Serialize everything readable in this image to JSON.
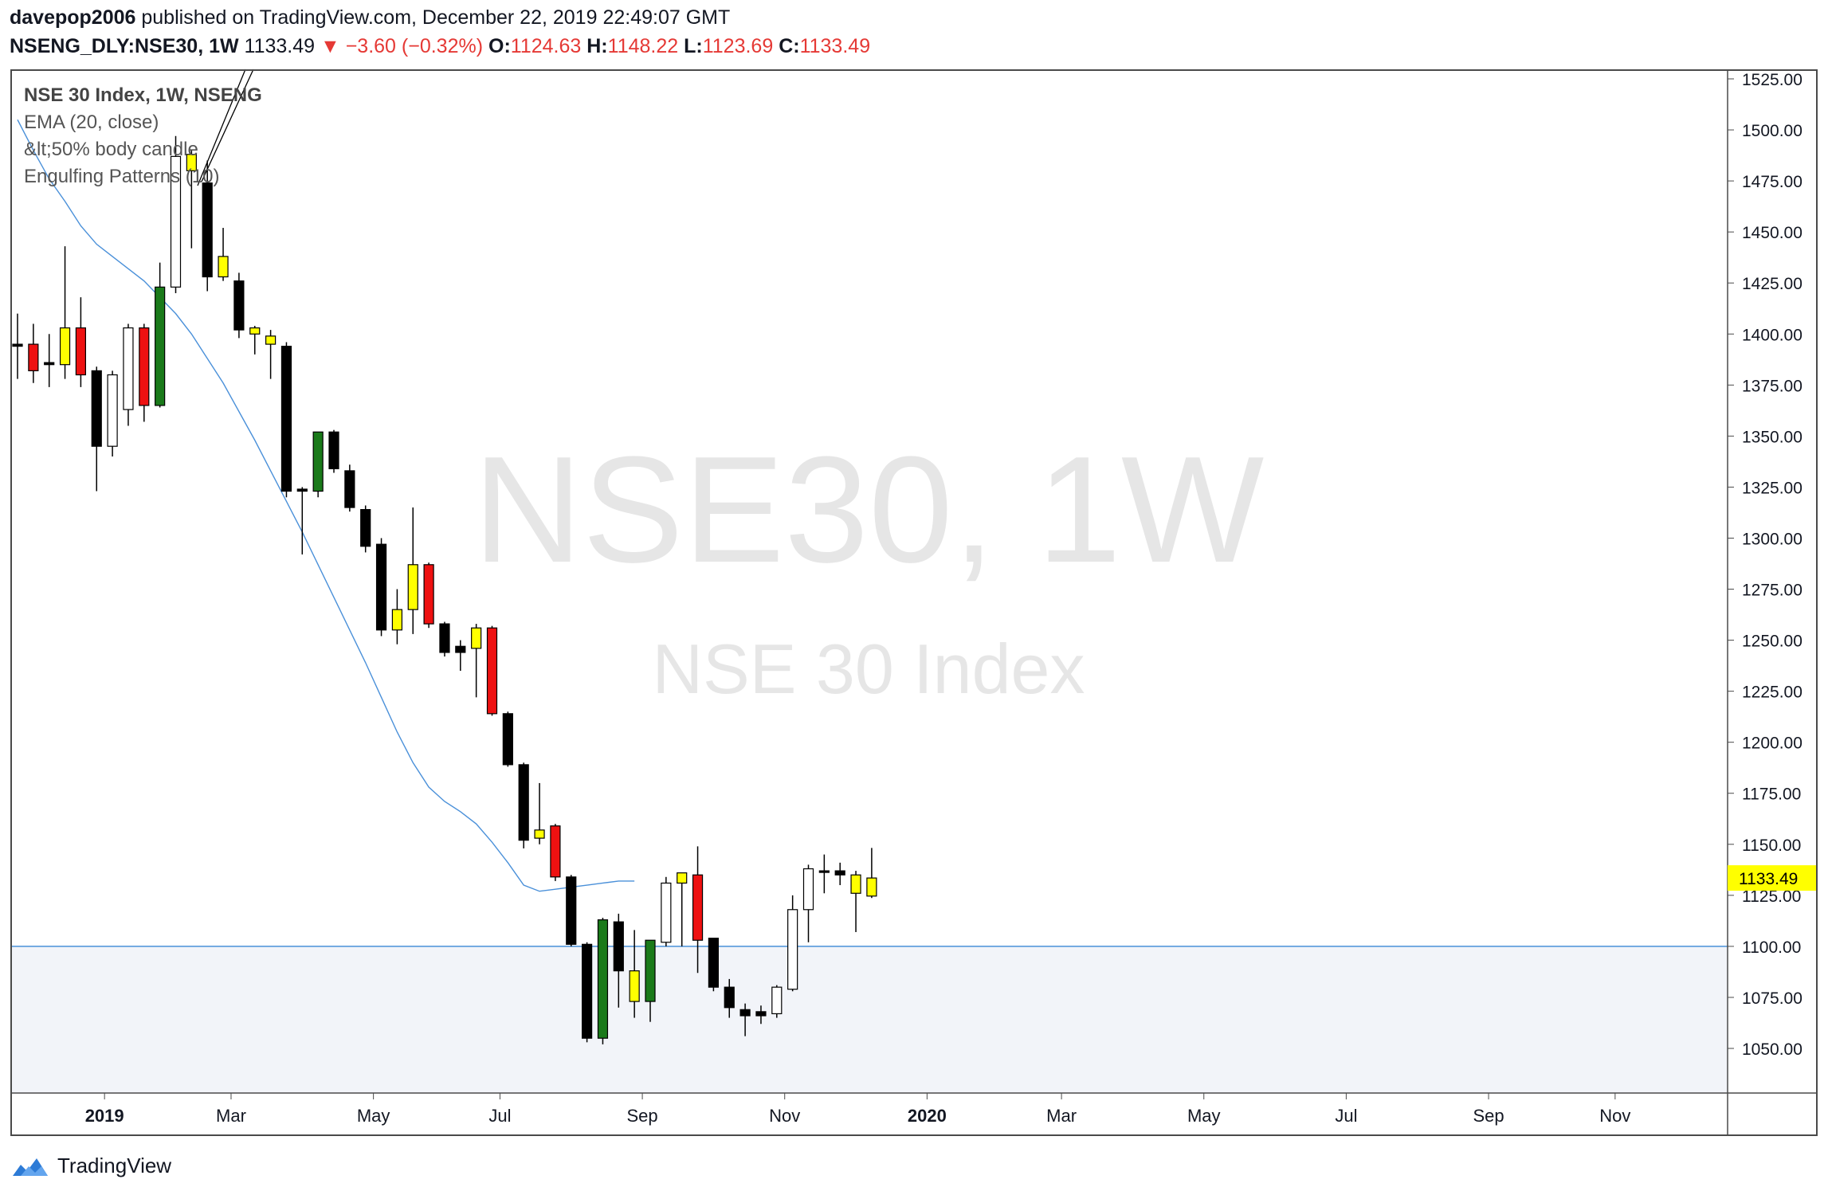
{
  "header": {
    "author": "davepop2006",
    "published_text": "published on TradingView.com, December 22, 2019 22:49:07 GMT",
    "symbol": "NSENG_DLY:NSE30, 1W",
    "last": "1133.49",
    "change": "▼ −3.60 (−0.32%)",
    "o_label": "O:",
    "o_value": "1124.63",
    "h_label": "H:",
    "h_value": "1148.22",
    "l_label": "L:",
    "l_value": "1123.69",
    "c_label": "C:",
    "c_value": "1133.49"
  },
  "legend": {
    "title": "NSE 30 Index, 1W, NSENG",
    "ema": "EMA (20, close)",
    "body_candle": "&lt;50% body candle",
    "engulfing": "Engulfing Patterns (10)"
  },
  "watermark": {
    "symbol": "NSE30, 1W",
    "name": "NSE 30 Index"
  },
  "footer": {
    "brand": "TradingView"
  },
  "colors": {
    "bull_green": "#1a7a1a",
    "bear_red": "#ee1111",
    "doji_yellow": "#ffff00",
    "bear_black": "#000000",
    "bull_white": "#ffffff",
    "ema": "#4a90d9",
    "support_zone": "#f2f4f9",
    "price_tag": "#ffff00"
  },
  "chart_data": {
    "type": "candlestick",
    "y_ticks": [
      "1525.00",
      "1500.00",
      "1475.00",
      "1450.00",
      "1425.00",
      "1400.00",
      "1375.00",
      "1350.00",
      "1325.00",
      "1300.00",
      "1275.00",
      "1250.00",
      "1225.00",
      "1200.00",
      "1175.00",
      "1150.00",
      "1125.00",
      "1100.00",
      "1075.00",
      "1050.00"
    ],
    "ylim": [
      1030,
      1530
    ],
    "x_ticks": [
      {
        "label": "2019",
        "index": 5.5,
        "bold": true
      },
      {
        "label": "Mar",
        "index": 13.5
      },
      {
        "label": "May",
        "index": 22.5
      },
      {
        "label": "Jul",
        "index": 30.5
      },
      {
        "label": "Sep",
        "index": 39.5
      },
      {
        "label": "Nov",
        "index": 48.5
      },
      {
        "label": "2020",
        "index": 57.5,
        "bold": true
      },
      {
        "label": "Mar",
        "index": 66
      },
      {
        "label": "May",
        "index": 75
      },
      {
        "label": "Jul",
        "index": 84
      },
      {
        "label": "Sep",
        "index": 93
      },
      {
        "label": "Nov",
        "index": 101
      }
    ],
    "x_total_bars": 109,
    "last_price_label": "1133.49",
    "last_price": 1133.49,
    "support_line": 1100,
    "candles": [
      {
        "o": 1394,
        "h": 1410,
        "l": 1378,
        "c": 1395,
        "color": "black"
      },
      {
        "o": 1395,
        "h": 1405,
        "l": 1376,
        "c": 1382,
        "color": "red"
      },
      {
        "o": 1386,
        "h": 1400,
        "l": 1374,
        "c": 1385,
        "color": "black"
      },
      {
        "o": 1385,
        "h": 1443,
        "l": 1378,
        "c": 1403,
        "color": "yellow"
      },
      {
        "o": 1403,
        "h": 1418,
        "l": 1374,
        "c": 1380,
        "color": "red"
      },
      {
        "o": 1382,
        "h": 1384,
        "l": 1323,
        "c": 1345,
        "color": "black"
      },
      {
        "o": 1345,
        "h": 1382,
        "l": 1340,
        "c": 1380,
        "color": "white"
      },
      {
        "o": 1363,
        "h": 1405,
        "l": 1355,
        "c": 1403,
        "color": "white"
      },
      {
        "o": 1403,
        "h": 1405,
        "l": 1357,
        "c": 1365,
        "color": "red"
      },
      {
        "o": 1365,
        "h": 1435,
        "l": 1364,
        "c": 1423,
        "color": "green"
      },
      {
        "o": 1423,
        "h": 1497,
        "l": 1420,
        "c": 1487,
        "color": "white"
      },
      {
        "o": 1488,
        "h": 1490,
        "l": 1442,
        "c": 1480,
        "color": "yellow"
      },
      {
        "o": 1474,
        "h": 1485,
        "l": 1421,
        "c": 1428,
        "color": "black"
      },
      {
        "o": 1428,
        "h": 1452,
        "l": 1426,
        "c": 1438,
        "color": "yellow"
      },
      {
        "o": 1426,
        "h": 1430,
        "l": 1398,
        "c": 1402,
        "color": "black"
      },
      {
        "o": 1403,
        "h": 1404,
        "l": 1390,
        "c": 1400,
        "color": "yellow"
      },
      {
        "o": 1399,
        "h": 1402,
        "l": 1378,
        "c": 1395,
        "color": "yellow"
      },
      {
        "o": 1394,
        "h": 1396,
        "l": 1320,
        "c": 1323,
        "color": "black"
      },
      {
        "o": 1323,
        "h": 1325,
        "l": 1292,
        "c": 1324,
        "color": "black"
      },
      {
        "o": 1323,
        "h": 1352,
        "l": 1320,
        "c": 1352,
        "color": "green"
      },
      {
        "o": 1352,
        "h": 1353,
        "l": 1332,
        "c": 1334,
        "color": "black"
      },
      {
        "o": 1333,
        "h": 1336,
        "l": 1313,
        "c": 1315,
        "color": "black"
      },
      {
        "o": 1314,
        "h": 1316,
        "l": 1293,
        "c": 1296,
        "color": "black"
      },
      {
        "o": 1297,
        "h": 1300,
        "l": 1252,
        "c": 1255,
        "color": "black"
      },
      {
        "o": 1255,
        "h": 1275,
        "l": 1248,
        "c": 1265,
        "color": "yellow"
      },
      {
        "o": 1265,
        "h": 1315,
        "l": 1253,
        "c": 1287,
        "color": "yellow"
      },
      {
        "o": 1287,
        "h": 1288,
        "l": 1256,
        "c": 1258,
        "color": "red"
      },
      {
        "o": 1258,
        "h": 1259,
        "l": 1242,
        "c": 1244,
        "color": "black"
      },
      {
        "o": 1247,
        "h": 1250,
        "l": 1235,
        "c": 1244,
        "color": "black"
      },
      {
        "o": 1246,
        "h": 1258,
        "l": 1222,
        "c": 1256,
        "color": "yellow"
      },
      {
        "o": 1256,
        "h": 1257,
        "l": 1213,
        "c": 1214,
        "color": "red"
      },
      {
        "o": 1214,
        "h": 1215,
        "l": 1188,
        "c": 1189,
        "color": "black"
      },
      {
        "o": 1189,
        "h": 1190,
        "l": 1148,
        "c": 1152,
        "color": "black"
      },
      {
        "o": 1153,
        "h": 1180,
        "l": 1150,
        "c": 1157,
        "color": "yellow"
      },
      {
        "o": 1159,
        "h": 1160,
        "l": 1132,
        "c": 1134,
        "color": "red"
      },
      {
        "o": 1134,
        "h": 1135,
        "l": 1100,
        "c": 1101,
        "color": "black"
      },
      {
        "o": 1101,
        "h": 1102,
        "l": 1053,
        "c": 1055,
        "color": "black"
      },
      {
        "o": 1055,
        "h": 1114,
        "l": 1052,
        "c": 1113,
        "color": "green"
      },
      {
        "o": 1112,
        "h": 1116,
        "l": 1070,
        "c": 1088,
        "color": "black"
      },
      {
        "o": 1088,
        "h": 1108,
        "l": 1065,
        "c": 1073,
        "color": "yellow"
      },
      {
        "o": 1073,
        "h": 1103,
        "l": 1063,
        "c": 1103,
        "color": "green"
      },
      {
        "o": 1102,
        "h": 1134,
        "l": 1100,
        "c": 1131,
        "color": "white"
      },
      {
        "o": 1131,
        "h": 1136,
        "l": 1100,
        "c": 1136,
        "color": "yellow"
      },
      {
        "o": 1135,
        "h": 1149,
        "l": 1087,
        "c": 1103,
        "color": "red"
      },
      {
        "o": 1104,
        "h": 1104,
        "l": 1078,
        "c": 1080,
        "color": "black"
      },
      {
        "o": 1080,
        "h": 1084,
        "l": 1065,
        "c": 1070,
        "color": "black"
      },
      {
        "o": 1069,
        "h": 1072,
        "l": 1056,
        "c": 1066,
        "color": "black"
      },
      {
        "o": 1066,
        "h": 1071,
        "l": 1062,
        "c": 1068,
        "color": "black"
      },
      {
        "o": 1067,
        "h": 1081,
        "l": 1065,
        "c": 1080,
        "color": "white"
      },
      {
        "o": 1079,
        "h": 1125,
        "l": 1078,
        "c": 1118,
        "color": "white"
      },
      {
        "o": 1118,
        "h": 1140,
        "l": 1102,
        "c": 1138,
        "color": "white"
      },
      {
        "o": 1137,
        "h": 1145,
        "l": 1126,
        "c": 1137,
        "color": "black"
      },
      {
        "o": 1137,
        "h": 1141,
        "l": 1130,
        "c": 1135,
        "color": "black"
      },
      {
        "o": 1126,
        "h": 1137,
        "l": 1107,
        "c": 1135,
        "color": "yellow"
      },
      {
        "o": 1124.63,
        "h": 1148.22,
        "l": 1123.69,
        "c": 1133.49,
        "color": "yellow"
      }
    ],
    "ema20": [
      1505,
      1490,
      1476,
      1465,
      1453,
      1444,
      1438,
      1432,
      1426,
      1418,
      1410,
      1400,
      1388,
      1376,
      1362,
      1348,
      1333,
      1318,
      1303,
      1287,
      1271,
      1255,
      1239,
      1222,
      1205,
      1190,
      1178,
      1171,
      1166,
      1160,
      1151,
      1141,
      1130,
      1127,
      1128,
      1129,
      1130,
      1131,
      1132,
      1132
    ]
  }
}
